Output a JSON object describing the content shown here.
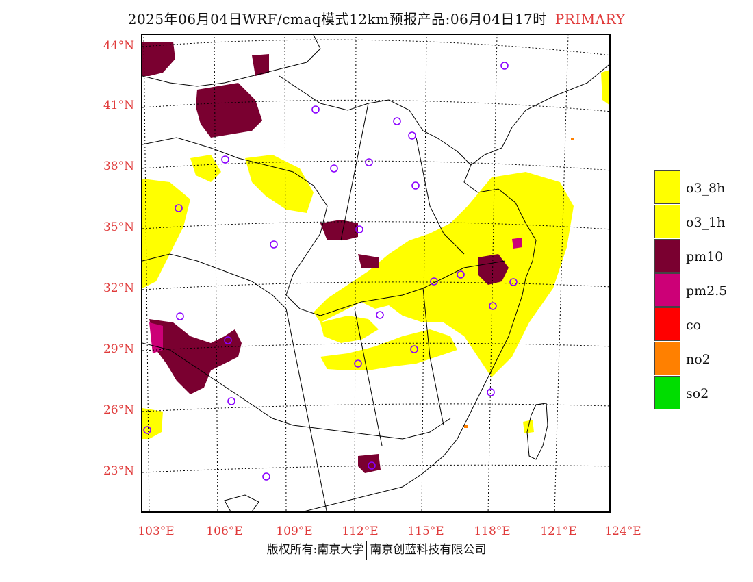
{
  "title": {
    "main": "2025年06月04日WRF/cmaq模式12km预报产品:06月04日17时",
    "tag": "PRIMARY"
  },
  "map": {
    "lat_labels": [
      "44°N",
      "41°N",
      "38°N",
      "35°N",
      "32°N",
      "29°N",
      "26°N",
      "23°N"
    ],
    "lon_labels": [
      "103°E",
      "106°E",
      "109°E",
      "112°E",
      "115°E",
      "118°E",
      "121°E",
      "124°E"
    ],
    "colors": {
      "o3_8h": "#ffff00",
      "pm10": "#7a0030",
      "pm25": "#cc0077",
      "co": "#ff0000",
      "no2": "#ff8000",
      "so2": "#00dd00",
      "station": "#8a00ff",
      "boundary": "#000000"
    }
  },
  "legend": {
    "items": [
      {
        "label": "o3_8h",
        "color": "#ffff00"
      },
      {
        "label": "o3_1h",
        "color": "#ffff00"
      },
      {
        "label": "pm10",
        "color": "#7a0030"
      },
      {
        "label": "pm2.5",
        "color": "#cc0077"
      },
      {
        "label": "co",
        "color": "#ff0000"
      },
      {
        "label": "no2",
        "color": "#ff8000"
      },
      {
        "label": "so2",
        "color": "#00dd00"
      }
    ]
  },
  "footer": {
    "left": "版权所有:南京大学",
    "right": "南京创蓝科技有限公司"
  }
}
